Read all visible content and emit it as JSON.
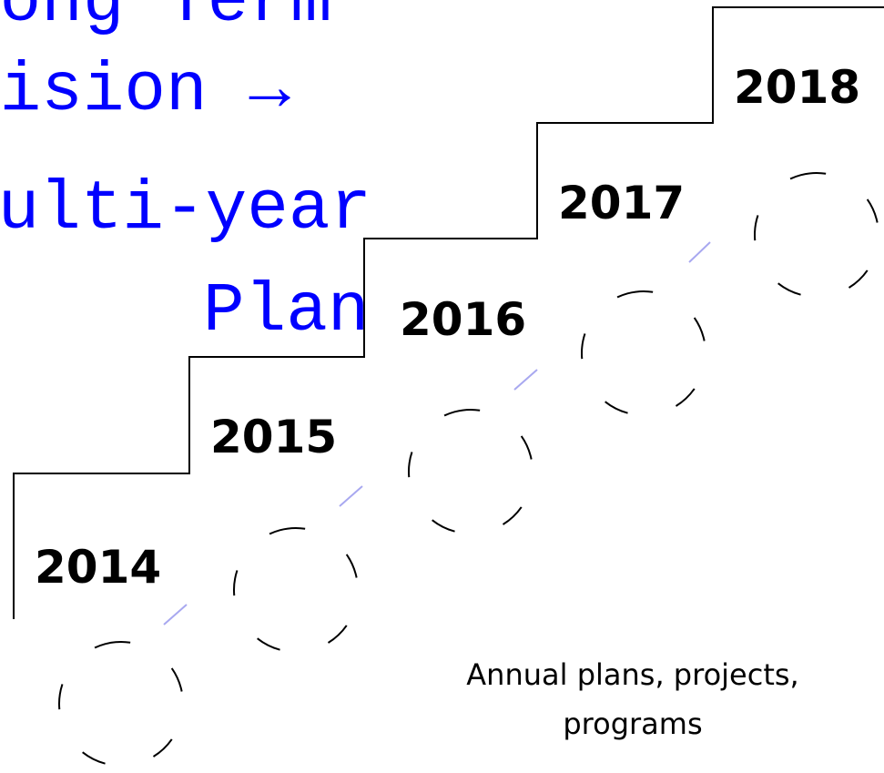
{
  "title_lines": [
    "Long Term",
    "Vision →",
    "Multi-year",
    "Plan"
  ],
  "steps": [
    "2014",
    "2015",
    "2016",
    "2017",
    "2018"
  ],
  "caption_lines": [
    "Annual plans, projects,",
    "programs"
  ]
}
